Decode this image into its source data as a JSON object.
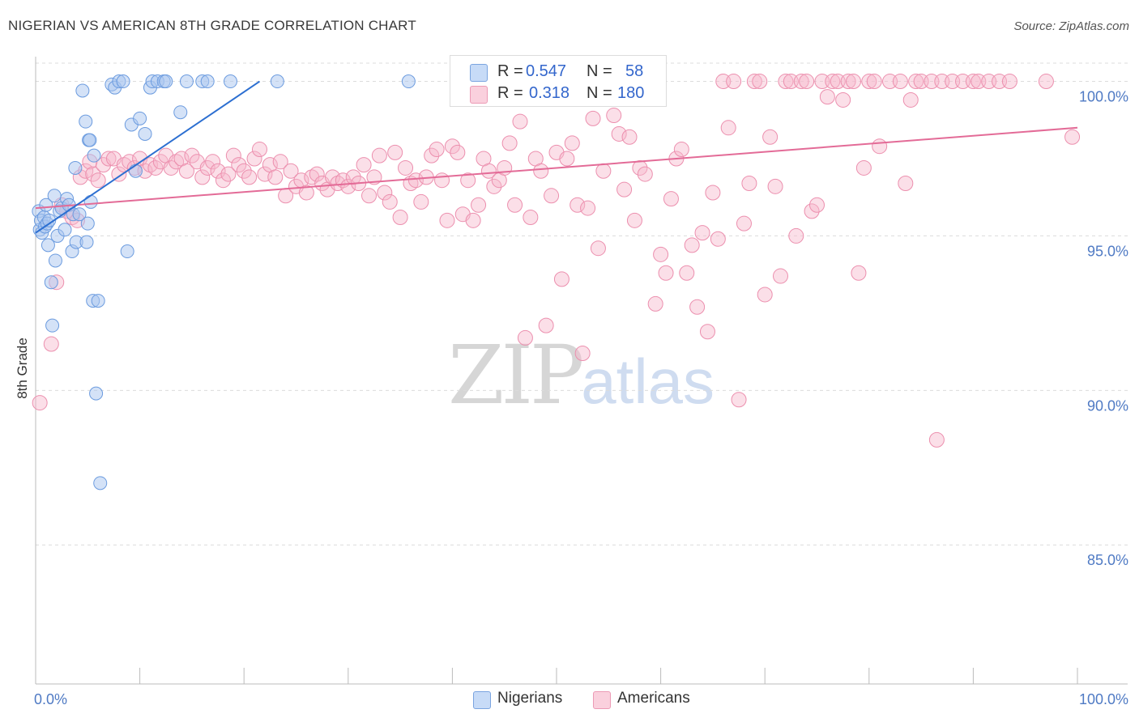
{
  "title": "NIGERIAN VS AMERICAN 8TH GRADE CORRELATION CHART",
  "source": "Source: ZipAtlas.com",
  "watermark": {
    "zip": "ZIP",
    "atlas": "atlas"
  },
  "legend_box": {
    "rows": [
      {
        "r_label": "R =",
        "r_value": "0.547",
        "n_label": "N =",
        "n_value": "58",
        "color": "#a9c5ef"
      },
      {
        "r_label": "R =",
        "r_value": "0.318",
        "n_label": "N =",
        "n_value": "180",
        "color": "#f6b8cb"
      }
    ]
  },
  "bottom_legend": [
    {
      "label": "Nigerians",
      "color": "#a9c5ef"
    },
    {
      "label": "Americans",
      "color": "#f6b8cb"
    }
  ],
  "chart_data": {
    "type": "scatter",
    "xlabel": "",
    "ylabel": "8th Grade",
    "xlim": [
      0,
      100
    ],
    "ylim": [
      80.5,
      100.8
    ],
    "x_tick_labels": [
      "0.0%",
      "100.0%"
    ],
    "y_ticks": [
      {
        "value": 85,
        "label": "85.0%"
      },
      {
        "value": 90,
        "label": "90.0%"
      },
      {
        "value": 95,
        "label": "95.0%"
      },
      {
        "value": 100,
        "label": "100.0%"
      }
    ],
    "grid": true,
    "legend_placement": "bottom",
    "colors": {
      "nigerian_fill": "#a9c5ef",
      "nigerian_stroke": "#6b9bdf",
      "nigerian_line": "#2c6fd1",
      "american_fill": "#f6b8cb",
      "american_stroke": "#ec8fae",
      "american_line": "#e36b97"
    },
    "series": [
      {
        "name": "Nigerians",
        "trend": [
          [
            0,
            95.1
          ],
          [
            21.5,
            100
          ]
        ],
        "points": [
          [
            0.3,
            95.8
          ],
          [
            0.4,
            95.2
          ],
          [
            0.5,
            95.5
          ],
          [
            0.6,
            95.1
          ],
          [
            0.8,
            95.6
          ],
          [
            0.9,
            95.3
          ],
          [
            1.0,
            96.0
          ],
          [
            1.1,
            95.4
          ],
          [
            1.2,
            94.7
          ],
          [
            1.3,
            95.5
          ],
          [
            1.5,
            93.5
          ],
          [
            1.6,
            92.1
          ],
          [
            1.8,
            96.3
          ],
          [
            1.9,
            94.2
          ],
          [
            2.1,
            95.0
          ],
          [
            2.3,
            95.8
          ],
          [
            2.5,
            95.9
          ],
          [
            2.8,
            95.2
          ],
          [
            3.0,
            96.2
          ],
          [
            3.2,
            96.0
          ],
          [
            3.5,
            94.5
          ],
          [
            3.6,
            95.7
          ],
          [
            3.8,
            97.2
          ],
          [
            3.9,
            94.8
          ],
          [
            4.2,
            95.7
          ],
          [
            4.5,
            99.7
          ],
          [
            4.8,
            98.7
          ],
          [
            4.9,
            94.8
          ],
          [
            5.0,
            95.4
          ],
          [
            5.1,
            98.1
          ],
          [
            5.2,
            98.1
          ],
          [
            5.3,
            96.1
          ],
          [
            5.5,
            92.9
          ],
          [
            5.6,
            97.6
          ],
          [
            5.8,
            89.9
          ],
          [
            6.0,
            92.9
          ],
          [
            6.2,
            87.0
          ],
          [
            7.3,
            99.9
          ],
          [
            7.6,
            99.8
          ],
          [
            8.0,
            100
          ],
          [
            8.4,
            100
          ],
          [
            8.8,
            94.5
          ],
          [
            9.2,
            98.6
          ],
          [
            9.6,
            97.1
          ],
          [
            10.0,
            98.8
          ],
          [
            10.5,
            98.3
          ],
          [
            11.0,
            99.8
          ],
          [
            11.2,
            100
          ],
          [
            11.7,
            100
          ],
          [
            12.3,
            100
          ],
          [
            12.5,
            100
          ],
          [
            13.9,
            99.0
          ],
          [
            14.5,
            100
          ],
          [
            16.0,
            100
          ],
          [
            16.5,
            100
          ],
          [
            18.7,
            100
          ],
          [
            23.2,
            100
          ],
          [
            35.8,
            100
          ]
        ]
      },
      {
        "name": "Americans",
        "trend": [
          [
            0,
            95.9
          ],
          [
            100,
            98.5
          ]
        ],
        "points": [
          [
            0.4,
            89.6
          ],
          [
            1.5,
            91.5
          ],
          [
            2.0,
            93.5
          ],
          [
            2.5,
            96.0
          ],
          [
            3.0,
            95.8
          ],
          [
            3.5,
            95.6
          ],
          [
            4.0,
            95.5
          ],
          [
            4.3,
            96.9
          ],
          [
            4.8,
            97.1
          ],
          [
            5.2,
            97.4
          ],
          [
            5.5,
            97.0
          ],
          [
            6.0,
            96.8
          ],
          [
            6.5,
            97.3
          ],
          [
            7.0,
            97.5
          ],
          [
            7.5,
            97.5
          ],
          [
            8.0,
            97.0
          ],
          [
            8.5,
            97.3
          ],
          [
            9.0,
            97.4
          ],
          [
            9.5,
            97.2
          ],
          [
            10.0,
            97.5
          ],
          [
            10.5,
            97.1
          ],
          [
            11.0,
            97.3
          ],
          [
            11.5,
            97.2
          ],
          [
            12.0,
            97.4
          ],
          [
            12.5,
            97.6
          ],
          [
            13.0,
            97.2
          ],
          [
            13.5,
            97.4
          ],
          [
            14.0,
            97.5
          ],
          [
            14.5,
            97.1
          ],
          [
            15.0,
            97.6
          ],
          [
            15.5,
            97.4
          ],
          [
            16.0,
            96.9
          ],
          [
            16.5,
            97.2
          ],
          [
            17.0,
            97.4
          ],
          [
            17.5,
            97.1
          ],
          [
            18.0,
            96.8
          ],
          [
            18.5,
            97.0
          ],
          [
            19.0,
            97.6
          ],
          [
            19.5,
            97.3
          ],
          [
            20.0,
            97.1
          ],
          [
            20.5,
            96.9
          ],
          [
            21.0,
            97.5
          ],
          [
            21.5,
            97.8
          ],
          [
            22.0,
            97.0
          ],
          [
            22.5,
            97.3
          ],
          [
            23.0,
            96.9
          ],
          [
            23.5,
            97.4
          ],
          [
            24.0,
            96.3
          ],
          [
            24.5,
            97.1
          ],
          [
            25.0,
            96.6
          ],
          [
            25.5,
            96.8
          ],
          [
            26.0,
            96.4
          ],
          [
            26.5,
            96.9
          ],
          [
            27.0,
            97.0
          ],
          [
            27.5,
            96.7
          ],
          [
            28.0,
            96.5
          ],
          [
            28.5,
            96.9
          ],
          [
            29.0,
            96.7
          ],
          [
            29.5,
            96.8
          ],
          [
            30.0,
            96.6
          ],
          [
            30.5,
            96.9
          ],
          [
            31.0,
            96.7
          ],
          [
            31.5,
            97.3
          ],
          [
            32.0,
            96.3
          ],
          [
            32.5,
            96.9
          ],
          [
            33.0,
            97.6
          ],
          [
            33.5,
            96.4
          ],
          [
            34.0,
            96.1
          ],
          [
            34.5,
            97.7
          ],
          [
            35.0,
            95.6
          ],
          [
            35.5,
            97.2
          ],
          [
            36.0,
            96.7
          ],
          [
            36.5,
            96.8
          ],
          [
            37.0,
            96.1
          ],
          [
            37.5,
            96.9
          ],
          [
            38.0,
            97.6
          ],
          [
            38.5,
            97.8
          ],
          [
            39.0,
            96.8
          ],
          [
            39.5,
            95.5
          ],
          [
            40.0,
            97.9
          ],
          [
            40.5,
            97.7
          ],
          [
            41.0,
            95.7
          ],
          [
            41.5,
            96.8
          ],
          [
            42.0,
            95.5
          ],
          [
            42.5,
            96.0
          ],
          [
            43.0,
            97.5
          ],
          [
            43.5,
            97.1
          ],
          [
            44.0,
            96.6
          ],
          [
            44.5,
            96.8
          ],
          [
            45.0,
            97.2
          ],
          [
            45.5,
            98.0
          ],
          [
            46.0,
            96.0
          ],
          [
            46.5,
            98.7
          ],
          [
            47.0,
            91.7
          ],
          [
            47.5,
            95.6
          ],
          [
            48.0,
            97.5
          ],
          [
            48.5,
            97.1
          ],
          [
            49.0,
            92.1
          ],
          [
            49.5,
            96.3
          ],
          [
            50.0,
            97.7
          ],
          [
            50.5,
            93.6
          ],
          [
            51.0,
            97.5
          ],
          [
            51.5,
            98.0
          ],
          [
            52.0,
            96.0
          ],
          [
            52.5,
            91.2
          ],
          [
            53.0,
            95.9
          ],
          [
            53.5,
            98.8
          ],
          [
            54.0,
            94.6
          ],
          [
            54.5,
            97.1
          ],
          [
            55.0,
            100
          ],
          [
            55.5,
            98.9
          ],
          [
            56.0,
            98.3
          ],
          [
            56.5,
            96.5
          ],
          [
            57.0,
            98.2
          ],
          [
            57.5,
            95.5
          ],
          [
            58.0,
            97.2
          ],
          [
            58.5,
            97.0
          ],
          [
            59.0,
            100
          ],
          [
            59.5,
            92.8
          ],
          [
            60.0,
            94.4
          ],
          [
            60.5,
            93.8
          ],
          [
            61.0,
            96.2
          ],
          [
            61.5,
            97.5
          ],
          [
            62.0,
            97.8
          ],
          [
            62.5,
            93.8
          ],
          [
            63.0,
            94.7
          ],
          [
            63.5,
            92.7
          ],
          [
            64.0,
            95.1
          ],
          [
            64.5,
            91.9
          ],
          [
            65.0,
            96.4
          ],
          [
            65.5,
            94.9
          ],
          [
            66.0,
            100
          ],
          [
            66.5,
            98.5
          ],
          [
            67.0,
            100
          ],
          [
            67.5,
            89.7
          ],
          [
            68.0,
            95.4
          ],
          [
            68.5,
            96.7
          ],
          [
            69.0,
            100
          ],
          [
            69.5,
            100
          ],
          [
            70.0,
            93.1
          ],
          [
            70.5,
            98.2
          ],
          [
            71.0,
            96.6
          ],
          [
            71.5,
            93.7
          ],
          [
            72.0,
            100
          ],
          [
            72.5,
            100
          ],
          [
            73.0,
            95.0
          ],
          [
            73.5,
            100
          ],
          [
            74.0,
            100
          ],
          [
            74.5,
            95.8
          ],
          [
            75.0,
            96.0
          ],
          [
            75.5,
            100
          ],
          [
            76.0,
            99.5
          ],
          [
            76.5,
            100
          ],
          [
            77.0,
            100
          ],
          [
            77.5,
            99.4
          ],
          [
            78.0,
            100
          ],
          [
            78.5,
            100
          ],
          [
            79.0,
            93.8
          ],
          [
            79.5,
            97.2
          ],
          [
            80.0,
            100
          ],
          [
            80.5,
            100
          ],
          [
            81.0,
            97.9
          ],
          [
            82.0,
            100
          ],
          [
            83.0,
            100
          ],
          [
            83.5,
            96.7
          ],
          [
            84.0,
            99.4
          ],
          [
            84.5,
            100
          ],
          [
            85.0,
            100
          ],
          [
            86.0,
            100
          ],
          [
            86.5,
            88.4
          ],
          [
            87.0,
            100
          ],
          [
            88.0,
            100
          ],
          [
            89.0,
            100
          ],
          [
            90.0,
            100
          ],
          [
            90.5,
            100
          ],
          [
            91.5,
            100
          ],
          [
            92.5,
            100
          ],
          [
            93.5,
            100
          ],
          [
            97.0,
            100
          ],
          [
            99.5,
            98.2
          ]
        ]
      }
    ]
  }
}
